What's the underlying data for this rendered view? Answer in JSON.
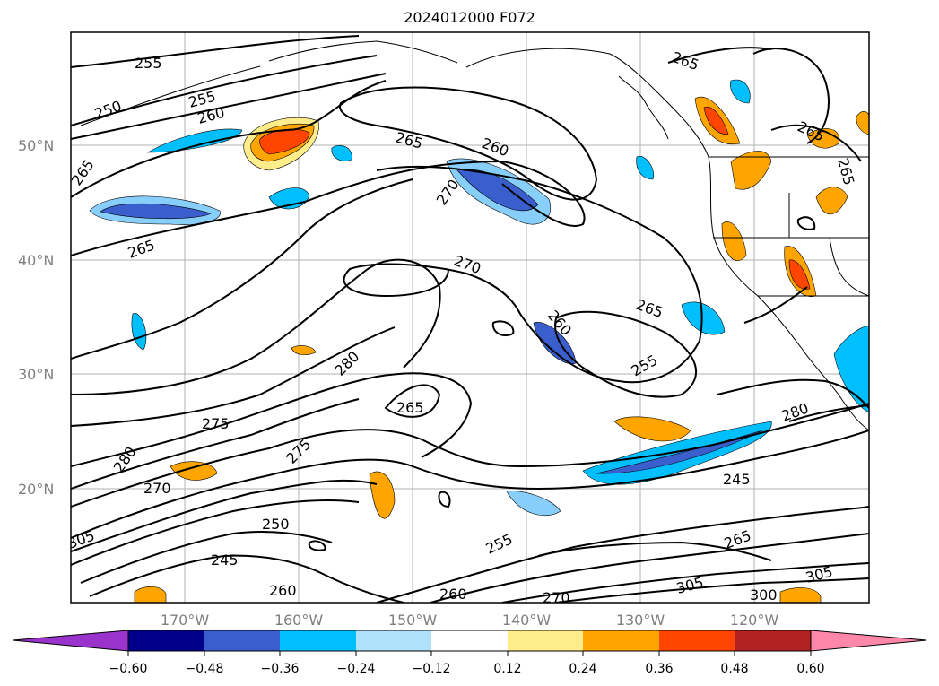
{
  "title": "2024012000 F072",
  "map": {
    "lat_labels": [
      "50°N",
      "40°N",
      "30°N",
      "20°N"
    ],
    "lon_labels": [
      "170°W",
      "160°W",
      "150°W",
      "140°W",
      "130°W",
      "120°W"
    ],
    "contour_labels": [
      "255",
      "255",
      "250",
      "260",
      "265",
      "265",
      "265",
      "260",
      "270",
      "270",
      "265",
      "260",
      "255",
      "265",
      "265",
      "265",
      "280",
      "265",
      "275",
      "280",
      "280",
      "245",
      "250",
      "245",
      "255",
      "260",
      "270",
      "305",
      "300",
      "305",
      "305",
      "265",
      "275",
      "260",
      "270"
    ]
  },
  "colorbar": {
    "colors": [
      "#9933cc",
      "#00008b",
      "#3a5fcd",
      "#00bfff",
      "#afe1fa",
      "#ffffff",
      "#ffec8b",
      "#ffa500",
      "#ff4500",
      "#b22222",
      "#ff88aa"
    ],
    "tick_labels": [
      "−0.60",
      "−0.48",
      "−0.36",
      "−0.24",
      "−0.12",
      "0.12",
      "0.24",
      "0.36",
      "0.48",
      "0.60"
    ]
  }
}
